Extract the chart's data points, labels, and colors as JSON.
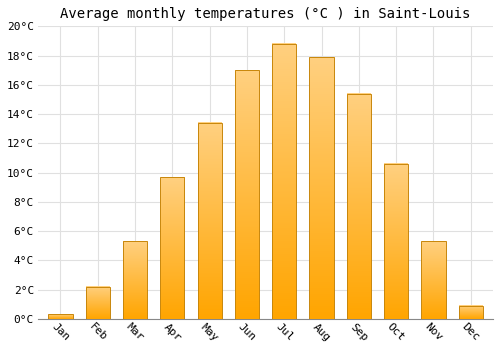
{
  "title": "Average monthly temperatures (°C ) in Saint-Louis",
  "months": [
    "Jan",
    "Feb",
    "Mar",
    "Apr",
    "May",
    "Jun",
    "Jul",
    "Aug",
    "Sep",
    "Oct",
    "Nov",
    "Dec"
  ],
  "values": [
    0.3,
    2.2,
    5.3,
    9.7,
    13.4,
    17.0,
    18.8,
    17.9,
    15.4,
    10.6,
    5.3,
    0.9
  ],
  "bar_color_bottom": "#FFA500",
  "bar_color_top": "#FFD080",
  "bar_edge_color": "#C8860A",
  "ylim": [
    0,
    20
  ],
  "yticks": [
    0,
    2,
    4,
    6,
    8,
    10,
    12,
    14,
    16,
    18,
    20
  ],
  "ytick_labels": [
    "0°C",
    "2°C",
    "4°C",
    "6°C",
    "8°C",
    "10°C",
    "12°C",
    "14°C",
    "16°C",
    "18°C",
    "20°C"
  ],
  "background_color": "#ffffff",
  "grid_color": "#e0e0e0",
  "title_fontsize": 10,
  "tick_fontsize": 8
}
